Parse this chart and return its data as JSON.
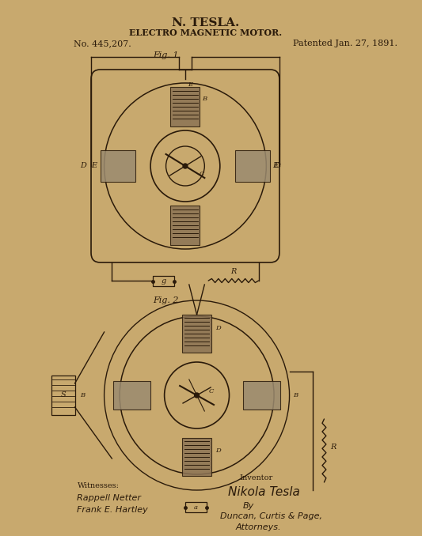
{
  "bg_color": "#c8a96e",
  "bg_color_light": "#d4b483",
  "ink_color": "#2a1a0a",
  "title_line1": "N. TESLA.",
  "title_line2": "ELECTRO MAGNETIC MOTOR.",
  "patent_no": "No. 445,207.",
  "patent_date": "Patented Jan. 27, 1891.",
  "fig1_label": "Fig. 1",
  "fig2_label": "Fig. 2",
  "witnesses_label": "Witnesses:",
  "witness1": "Rappell Netter",
  "witness2": "Frank E. Hartley",
  "inventor_label": "Inventor",
  "inventor_name": "Nikola Tesla",
  "by_label": "By",
  "attorneys_firm": "Duncan, Curtis & Page,",
  "attorneys_label": "Attorneys."
}
